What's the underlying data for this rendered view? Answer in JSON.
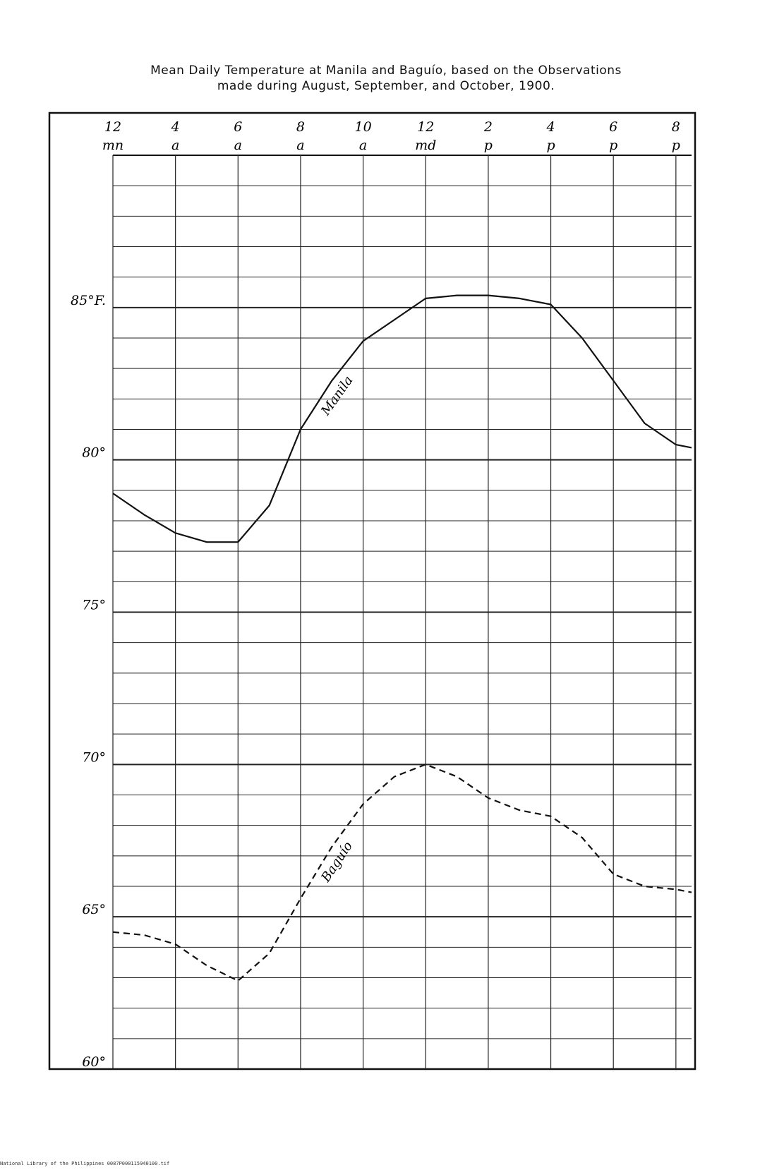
{
  "title_line1": "Mean Daily Temperature at Manila and Baguío, based on the Observations",
  "title_line2": "made during August, September, and October, 1900.",
  "footer_text": "National Library of the Philippines    0087P000115940100.tif",
  "chart_data": {
    "type": "line",
    "title": "Mean Daily Temperature at Manila and Baguío, based on the Observations made during August, September, and October, 1900.",
    "xlabel": "",
    "ylabel": "",
    "x_hours": [
      0,
      2,
      4,
      6,
      8,
      10,
      12,
      14,
      16,
      18,
      20
    ],
    "x_tick_labels": [
      {
        "hour": 0,
        "top": "12",
        "bottom": "mn"
      },
      {
        "hour": 2,
        "top": "4",
        "bottom": "a"
      },
      {
        "hour": 4,
        "top": "6",
        "bottom": "a"
      },
      {
        "hour": 6,
        "top": "8",
        "bottom": "a"
      },
      {
        "hour": 8,
        "top": "10",
        "bottom": "a"
      },
      {
        "hour": 10,
        "top": "12",
        "bottom": "md"
      },
      {
        "hour": 12,
        "top": "2",
        "bottom": "p"
      },
      {
        "hour": 14,
        "top": "4",
        "bottom": "p"
      },
      {
        "hour": 16,
        "top": "6",
        "bottom": "p"
      },
      {
        "hour": 18,
        "top": "8",
        "bottom": "p"
      }
    ],
    "y_ticks": [
      {
        "value": 85,
        "label": "85°F."
      },
      {
        "value": 80,
        "label": "80°"
      },
      {
        "value": 75,
        "label": "75°"
      },
      {
        "value": 70,
        "label": "70°"
      },
      {
        "value": 65,
        "label": "65°"
      },
      {
        "value": 60,
        "label": "60°"
      }
    ],
    "ylim": [
      60,
      90
    ],
    "xlim": [
      0,
      18.5
    ],
    "series": [
      {
        "name": "Manila",
        "style": "solid",
        "points": [
          [
            0,
            78.9
          ],
          [
            1,
            78.2
          ],
          [
            2,
            77.6
          ],
          [
            3,
            77.3
          ],
          [
            4,
            77.3
          ],
          [
            5,
            78.5
          ],
          [
            6,
            81.0
          ],
          [
            7,
            82.6
          ],
          [
            8,
            83.9
          ],
          [
            9,
            84.6
          ],
          [
            10,
            85.3
          ],
          [
            11,
            85.4
          ],
          [
            12,
            85.4
          ],
          [
            13,
            85.3
          ],
          [
            14,
            85.1
          ],
          [
            15,
            84.0
          ],
          [
            16,
            82.6
          ],
          [
            17,
            81.2
          ],
          [
            18,
            80.5
          ],
          [
            18.5,
            80.4
          ]
        ],
        "color": "#111111"
      },
      {
        "name": "Baguío",
        "style": "dashed",
        "points": [
          [
            0,
            64.5
          ],
          [
            1,
            64.4
          ],
          [
            2,
            64.1
          ],
          [
            3,
            63.4
          ],
          [
            4,
            62.9
          ],
          [
            5,
            63.8
          ],
          [
            6,
            65.6
          ],
          [
            7,
            67.3
          ],
          [
            8,
            68.7
          ],
          [
            9,
            69.6
          ],
          [
            10,
            70.0
          ],
          [
            11,
            69.6
          ],
          [
            12,
            68.9
          ],
          [
            13,
            68.5
          ],
          [
            14,
            68.3
          ],
          [
            15,
            67.6
          ],
          [
            16,
            66.4
          ],
          [
            17,
            66.0
          ],
          [
            18,
            65.9
          ],
          [
            18.5,
            65.8
          ]
        ],
        "color": "#111111"
      }
    ],
    "grid": true,
    "minor_grid_step": 1,
    "legend": "none",
    "series_labels": "inline"
  }
}
